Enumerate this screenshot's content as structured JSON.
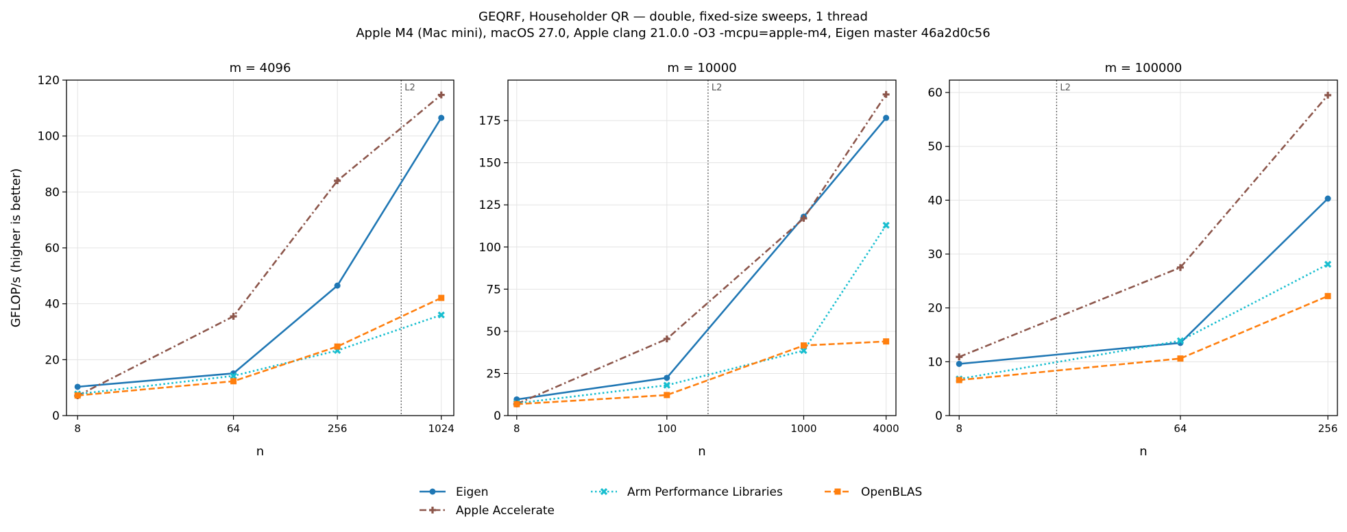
{
  "figure": {
    "title_line1": "GEQRF, Householder QR — double, fixed-size sweeps, 1 thread",
    "title_line2": "Apple M4 (Mac mini), macOS 27.0, Apple clang 21.0.0 -O3 -mcpu=apple-m4, Eigen master 46a2d0c56"
  },
  "legend": {
    "placement": "bottom-center",
    "entries": [
      {
        "name": "Eigen",
        "color": "#1f77b4",
        "marker": "circle",
        "dash": "solid"
      },
      {
        "name": "Apple Accelerate",
        "color": "#8c564b",
        "marker": "plus",
        "dash": "dashdot"
      },
      {
        "name": "Arm Performance Libraries",
        "color": "#17becf",
        "marker": "x",
        "dash": "dotted"
      },
      {
        "name": "OpenBLAS",
        "color": "#ff7f0e",
        "marker": "square",
        "dash": "dashed"
      }
    ]
  },
  "chart_data": [
    {
      "type": "line",
      "title": "m = 4096",
      "xlabel": "n",
      "ylabel": "GFLOP/s (higher is better)",
      "xscale": "log",
      "x": [
        8,
        64,
        256,
        1024
      ],
      "xticks": [
        "8",
        "64",
        "256",
        "1024"
      ],
      "xlim": [
        6.9,
        1210
      ],
      "ylim": [
        0,
        120
      ],
      "yticks": [
        0,
        20,
        40,
        60,
        80,
        100,
        120
      ],
      "grid": true,
      "vline": {
        "x": 600,
        "label": "L2"
      },
      "series": [
        {
          "name": "Eigen",
          "values": [
            10.3,
            15.1,
            46.5,
            106.5
          ]
        },
        {
          "name": "Apple Accelerate",
          "values": [
            7.1,
            35.5,
            84.0,
            114.7
          ]
        },
        {
          "name": "Arm Performance Libraries",
          "values": [
            7.7,
            14.2,
            23.3,
            36.0
          ]
        },
        {
          "name": "OpenBLAS",
          "values": [
            7.2,
            12.3,
            24.7,
            42.1
          ]
        }
      ]
    },
    {
      "type": "line",
      "title": "m = 10000",
      "xlabel": "n",
      "ylabel": "",
      "xscale": "log",
      "x": [
        8,
        100,
        1000,
        4000
      ],
      "xticks": [
        "8",
        "100",
        "1000",
        "4000"
      ],
      "xlim": [
        6.9,
        4720
      ],
      "ylim": [
        0,
        199
      ],
      "yticks": [
        0,
        25,
        50,
        75,
        100,
        125,
        150,
        175
      ],
      "grid": true,
      "vline": {
        "x": 200,
        "label": "L2"
      },
      "series": [
        {
          "name": "Eigen",
          "values": [
            9.6,
            22.4,
            118.0,
            176.6
          ]
        },
        {
          "name": "Apple Accelerate",
          "values": [
            6.9,
            45.5,
            117.0,
            190.5
          ]
        },
        {
          "name": "Arm Performance Libraries",
          "values": [
            7.3,
            18.0,
            38.6,
            112.9
          ]
        },
        {
          "name": "OpenBLAS",
          "values": [
            6.8,
            12.2,
            41.6,
            44.0
          ]
        }
      ]
    },
    {
      "type": "line",
      "title": "m = 100000",
      "xlabel": "n",
      "ylabel": "",
      "xscale": "log",
      "x": [
        8,
        64,
        256
      ],
      "xticks": [
        "8",
        "64",
        "256"
      ],
      "xlim": [
        7.3,
        280
      ],
      "ylim": [
        0,
        62.3
      ],
      "yticks": [
        0,
        10,
        20,
        30,
        40,
        50,
        60
      ],
      "grid": true,
      "vline": {
        "x": 20,
        "label": "L2"
      },
      "series": [
        {
          "name": "Eigen",
          "values": [
            9.6,
            13.5,
            40.3
          ]
        },
        {
          "name": "Apple Accelerate",
          "values": [
            10.9,
            27.5,
            59.5
          ]
        },
        {
          "name": "Arm Performance Libraries",
          "values": [
            6.8,
            13.9,
            28.1
          ]
        },
        {
          "name": "OpenBLAS",
          "values": [
            6.6,
            10.6,
            22.2
          ]
        }
      ]
    }
  ]
}
